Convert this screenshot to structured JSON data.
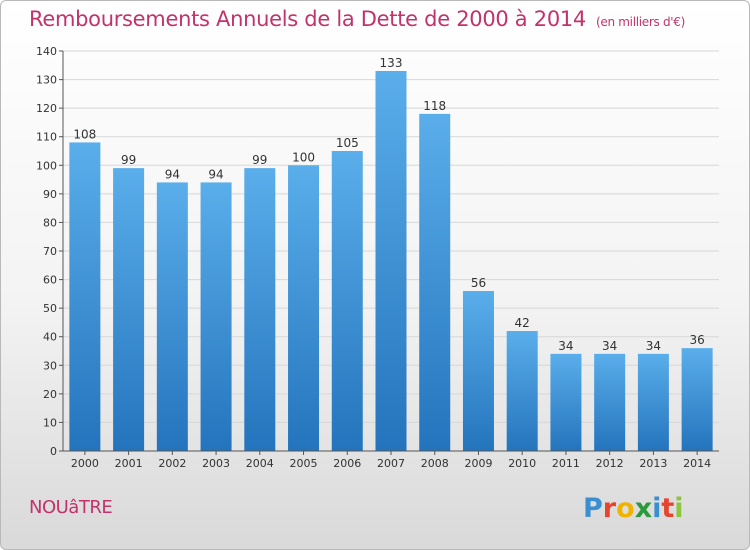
{
  "title": "Remboursements Annuels de la Dette de 2000 à 2014",
  "title_unit": "(en milliers d'€)",
  "town": "NOUâTRE",
  "brand": "Proxiti",
  "chart_data": {
    "type": "bar",
    "categories": [
      "2000",
      "2001",
      "2002",
      "2003",
      "2004",
      "2005",
      "2006",
      "2007",
      "2008",
      "2009",
      "2010",
      "2011",
      "2012",
      "2013",
      "2014"
    ],
    "values": [
      108,
      99,
      94,
      94,
      99,
      100,
      105,
      133,
      118,
      56,
      42,
      34,
      34,
      34,
      36
    ],
    "ylim": [
      0,
      140
    ],
    "yticks": [
      0,
      10,
      20,
      30,
      40,
      50,
      60,
      70,
      80,
      90,
      100,
      110,
      120,
      130,
      140
    ],
    "grid": true,
    "bar_color": "#3d8fd6",
    "title_color": "#c2336b"
  }
}
